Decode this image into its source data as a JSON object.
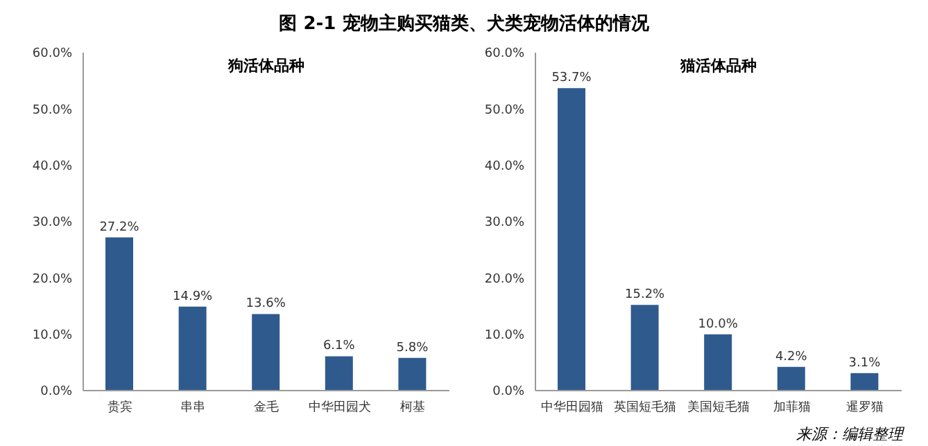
{
  "chart_data": [
    {
      "type": "bar",
      "title": "图 2-1  宠物主购买猫类、犬类宠物活体的情况",
      "subtitle": "狗活体品种",
      "categories": [
        "贵宾",
        "串串",
        "金毛",
        "中华田园犬",
        "柯基"
      ],
      "values": [
        27.2,
        14.9,
        13.6,
        6.1,
        5.8
      ],
      "value_labels": [
        "27.2%",
        "14.9%",
        "13.6%",
        "6.1%",
        "5.8%"
      ],
      "color": "#2f5a8e",
      "ylim": [
        0,
        60
      ],
      "yticks": [
        {
          "value": 0,
          "label": "0.0%"
        },
        {
          "value": 10,
          "label": "10.0%"
        },
        {
          "value": 20,
          "label": "20.0%"
        },
        {
          "value": 30,
          "label": "30.0%"
        },
        {
          "value": 40,
          "label": "40.0%"
        },
        {
          "value": 50,
          "label": "50.0%"
        },
        {
          "value": 60,
          "label": "60.0%"
        }
      ],
      "grid": false,
      "legend": false
    },
    {
      "type": "bar",
      "subtitle": "猫活体品种",
      "categories": [
        "中华田园猫",
        "英国短毛猫",
        "美国短毛猫",
        "加菲猫",
        "暹罗猫"
      ],
      "values": [
        53.7,
        15.2,
        10.0,
        4.2,
        3.1
      ],
      "value_labels": [
        "53.7%",
        "15.2%",
        "10.0%",
        "4.2%",
        "3.1%"
      ],
      "color": "#2f5a8e",
      "ylim": [
        0,
        60
      ],
      "yticks": [
        {
          "value": 0,
          "label": "0.0%"
        },
        {
          "value": 10,
          "label": "10.0%"
        },
        {
          "value": 20,
          "label": "20.0%"
        },
        {
          "value": 30,
          "label": "30.0%"
        },
        {
          "value": 40,
          "label": "40.0%"
        },
        {
          "value": 50,
          "label": "50.0%"
        },
        {
          "value": 60,
          "label": "60.0%"
        }
      ],
      "grid": false,
      "legend": false,
      "annotations": [
        "来源：编辑整理"
      ]
    }
  ]
}
